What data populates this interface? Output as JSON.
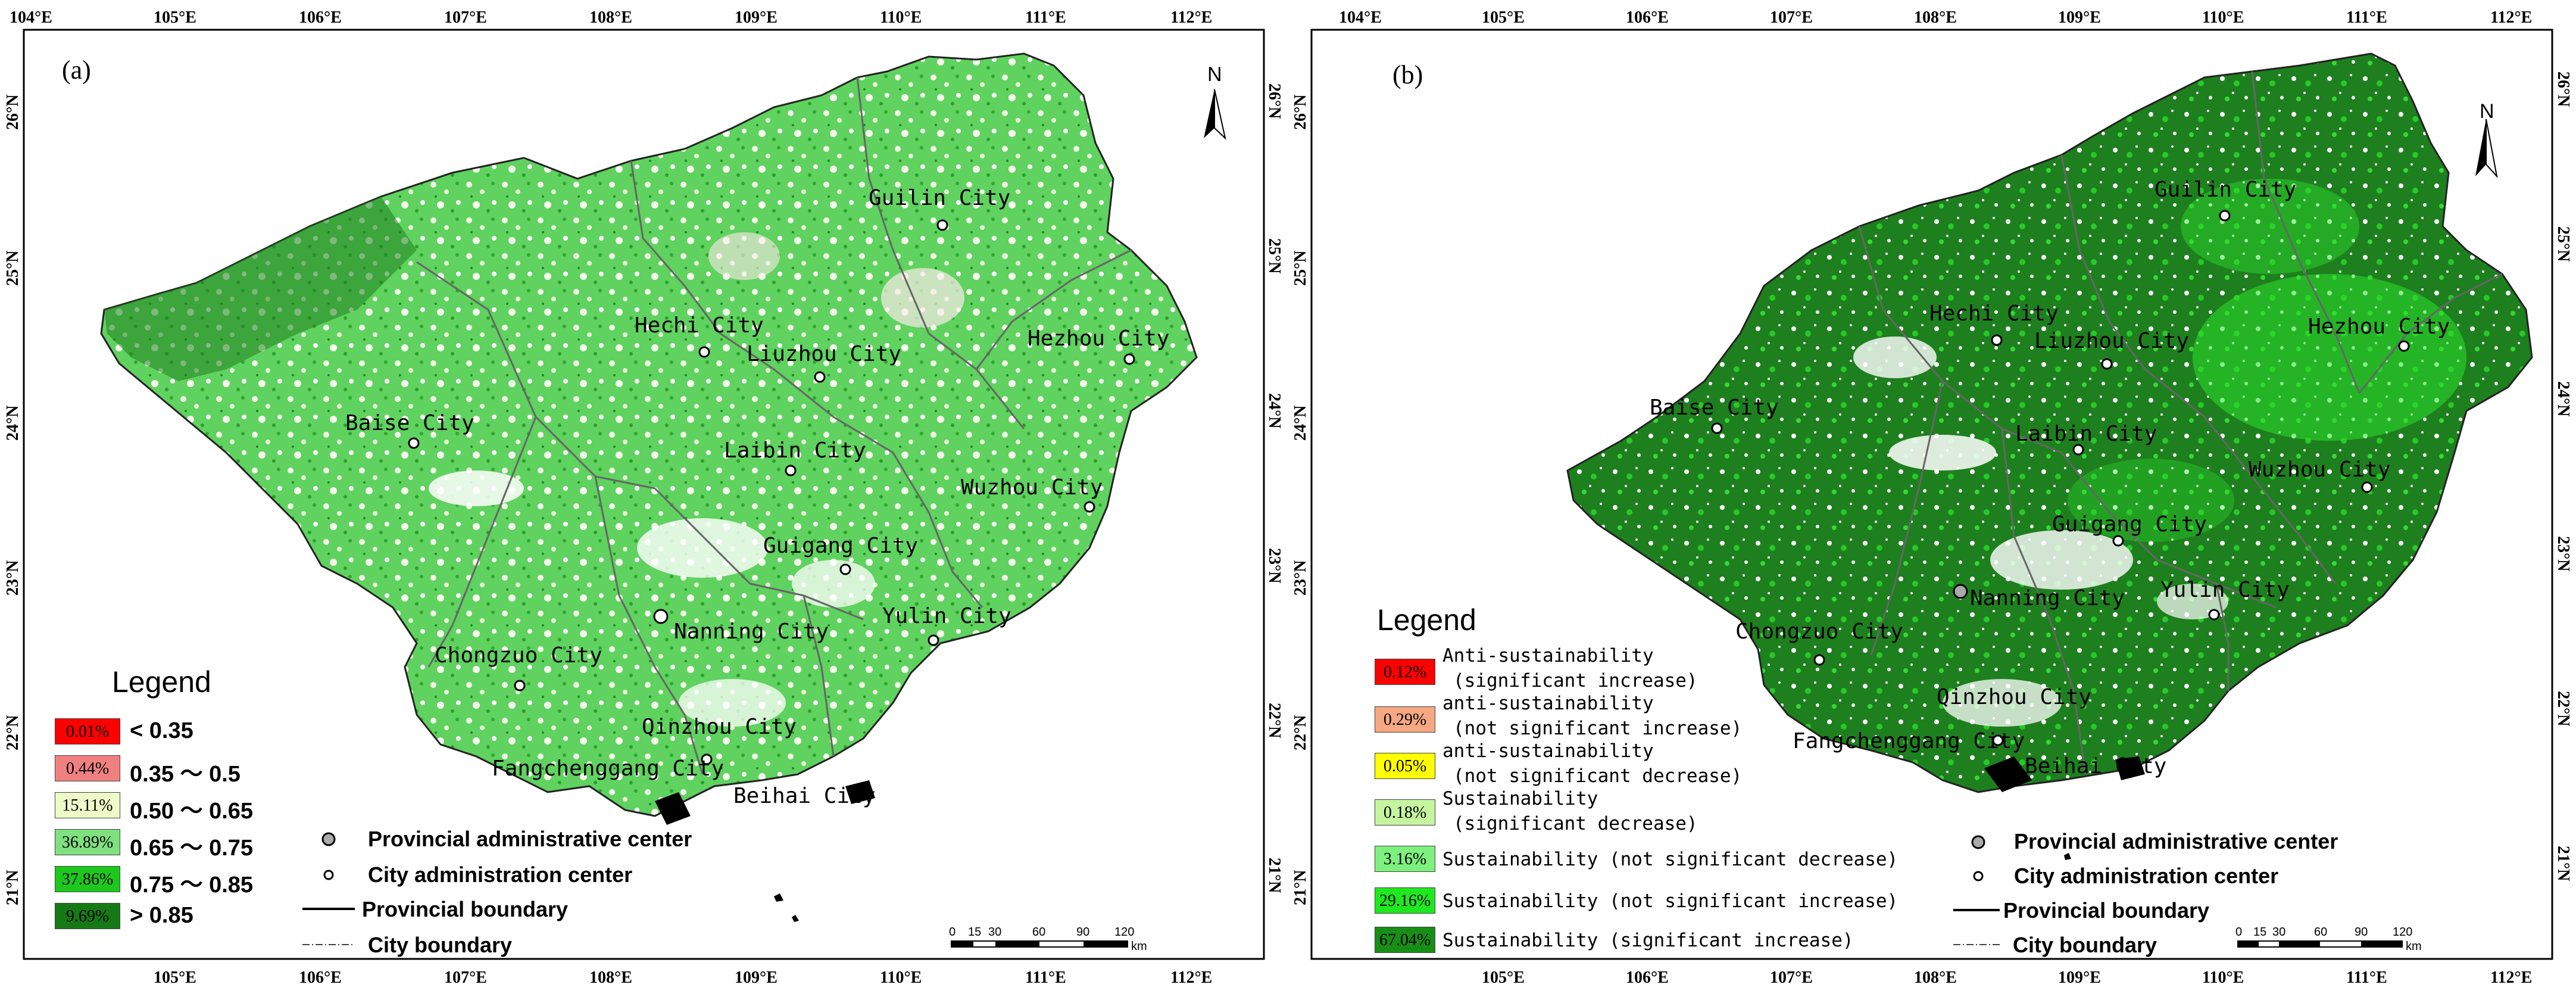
{
  "panel_a": {
    "label": "(a)",
    "lon_ticks": [
      "104°E",
      "105°E",
      "106°E",
      "107°E",
      "108°E",
      "109°E",
      "110°E",
      "111°E",
      "112°E"
    ],
    "lon_ticks_bottom": [
      "105°E",
      "106°E",
      "107°E",
      "108°E",
      "109°E",
      "110°E",
      "111°E",
      "112°E"
    ],
    "lat_ticks": [
      "26°N",
      "25°N",
      "24°N",
      "23°N",
      "22°N",
      "21°N"
    ],
    "north": "N",
    "cities": {
      "guilin": "Guilin City",
      "hechi": "Hechi City",
      "liuzhou": "Liuzhou City",
      "hezhou": "Hezhou City",
      "baise": "Baise City",
      "laibin": "Laibin City",
      "wuzhou": "Wuzhou City",
      "guigang": "Guigang City",
      "nanning": "Nanning City",
      "yulin": "Yulin City",
      "chongzuo": "Chongzuo City",
      "qinzhou": "Qinzhou City",
      "fangchenggang": "Fangchenggang City",
      "beihai": "Beihai City"
    },
    "legend": {
      "title": "Legend",
      "items": [
        {
          "pct": "0.01%",
          "label": "< 0.35",
          "color": "#ff0000"
        },
        {
          "pct": "0.44%",
          "label": "0.35 ～ 0.5",
          "color": "#f08080"
        },
        {
          "pct": "15.11%",
          "label": "0.50 ～ 0.65",
          "color": "#eefbc8"
        },
        {
          "pct": "36.89%",
          "label": "0.65 ～ 0.75",
          "color": "#7ee07e"
        },
        {
          "pct": "37.86%",
          "label": "0.75 ～ 0.85",
          "color": "#1cc81c"
        },
        {
          "pct": "9.69%",
          "label": "> 0.85",
          "color": "#157a15"
        }
      ]
    },
    "symbols": {
      "provincial_center": "Provincial administrative center",
      "city_center": "City administration center",
      "provincial_boundary": "Provincial boundary",
      "city_boundary": "City boundary"
    },
    "scale": {
      "ticks": [
        "0",
        "15",
        "30",
        "60",
        "90",
        "120"
      ],
      "unit": "km"
    }
  },
  "panel_b": {
    "label": "(b)",
    "lon_ticks": [
      "104°E",
      "105°E",
      "106°E",
      "107°E",
      "108°E",
      "109°E",
      "110°E",
      "111°E",
      "112°E"
    ],
    "lon_ticks_bottom": [
      "105°E",
      "106°E",
      "107°E",
      "108°E",
      "109°E",
      "110°E",
      "111°E",
      "112°E"
    ],
    "lat_ticks": [
      "26°N",
      "25°N",
      "24°N",
      "23°N",
      "22°N",
      "21°N"
    ],
    "north": "N",
    "cities": {
      "guilin": "Guilin City",
      "hechi": "Hechi City",
      "liuzhou": "Liuzhou City",
      "hezhou": "Hezhou City",
      "baise": "Baise City",
      "laibin": "Laibin City",
      "wuzhou": "Wuzhou City",
      "guigang": "Guigang City",
      "nanning": "Nanning City",
      "yulin": "Yulin City",
      "chongzuo": "Chongzuo City",
      "qinzhou": "Qinzhou City",
      "fangchenggang": "Fangchenggang City",
      "beihai": "Beihai City"
    },
    "legend": {
      "title": "Legend",
      "items": [
        {
          "pct": "0.12%",
          "line1": "Anti-sustainability",
          "line2": "(significant increase)",
          "color": "#ff0000"
        },
        {
          "pct": "0.29%",
          "line1": "anti-sustainability",
          "line2": "(not significant increase)",
          "color": "#f5a882"
        },
        {
          "pct": "0.05%",
          "line1": "anti-sustainability",
          "line2": "(not significant decrease)",
          "color": "#ffff00"
        },
        {
          "pct": "0.18%",
          "line1": "Sustainability",
          "line2": "(significant decrease)",
          "color": "#c6f5a0"
        },
        {
          "pct": "3.16%",
          "line1": "Sustainability (not significant decrease)",
          "line2": "",
          "color": "#7ef07e"
        },
        {
          "pct": "29.16%",
          "line1": "Sustainability (not significant increase)",
          "line2": "",
          "color": "#1ee81e"
        },
        {
          "pct": "67.04%",
          "line1": "Sustainability (significant increase)",
          "line2": "",
          "color": "#178f17"
        }
      ]
    },
    "symbols": {
      "provincial_center": "Provincial administrative center",
      "city_center": "City administration center",
      "provincial_boundary": "Provincial boundary",
      "city_boundary": "City boundary"
    },
    "scale": {
      "ticks": [
        "0",
        "15",
        "30",
        "60",
        "90",
        "120"
      ],
      "unit": "km"
    }
  }
}
